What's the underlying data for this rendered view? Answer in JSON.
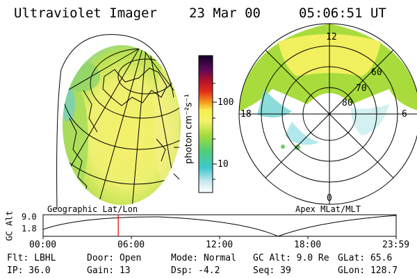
{
  "header": {
    "instrument": "Ultraviolet Imager",
    "date": "23 Mar 00",
    "time": "05:06:51 UT"
  },
  "colorbar": {
    "unit_label": "photon cm⁻²s⁻¹",
    "ticks": [
      "100",
      "10"
    ]
  },
  "left_panel": {
    "caption": "Geographic Lat/Lon"
  },
  "right_panel": {
    "caption": "Apex MLat/MLT",
    "mlt_labels": {
      "top": "12",
      "bottom": "0",
      "left": "18",
      "right": "6"
    },
    "mlat_labels": [
      "60",
      "70",
      "80"
    ]
  },
  "altitude_plot": {
    "ylabel": "GC Alt",
    "ytick_top": "9.0",
    "ytick_bottom": "1.8",
    "xticks": [
      "00:00",
      "06:00",
      "12:00",
      "18:00",
      "23:59"
    ],
    "current_time_hours": 5.11
  },
  "status": {
    "flt": "Flt: LBHL",
    "ip": "IP: 36.0",
    "door": "Door: Open",
    "gain": "Gain: 13",
    "mode": "Mode: Normal",
    "dsp": "Dsp:    -4.2",
    "gcalt": "GC Alt: 9.0 Re",
    "seq": "Seq: 39",
    "glat": "GLat:  65.6",
    "glon": "GLon: 128.7"
  },
  "colors": {
    "background": "#ffffff",
    "aurora_green": "#a8dc3c",
    "aurora_yellow": "#f2f05e",
    "aurora_cyan": "#7fd8d8",
    "time_marker": "#e00000"
  }
}
